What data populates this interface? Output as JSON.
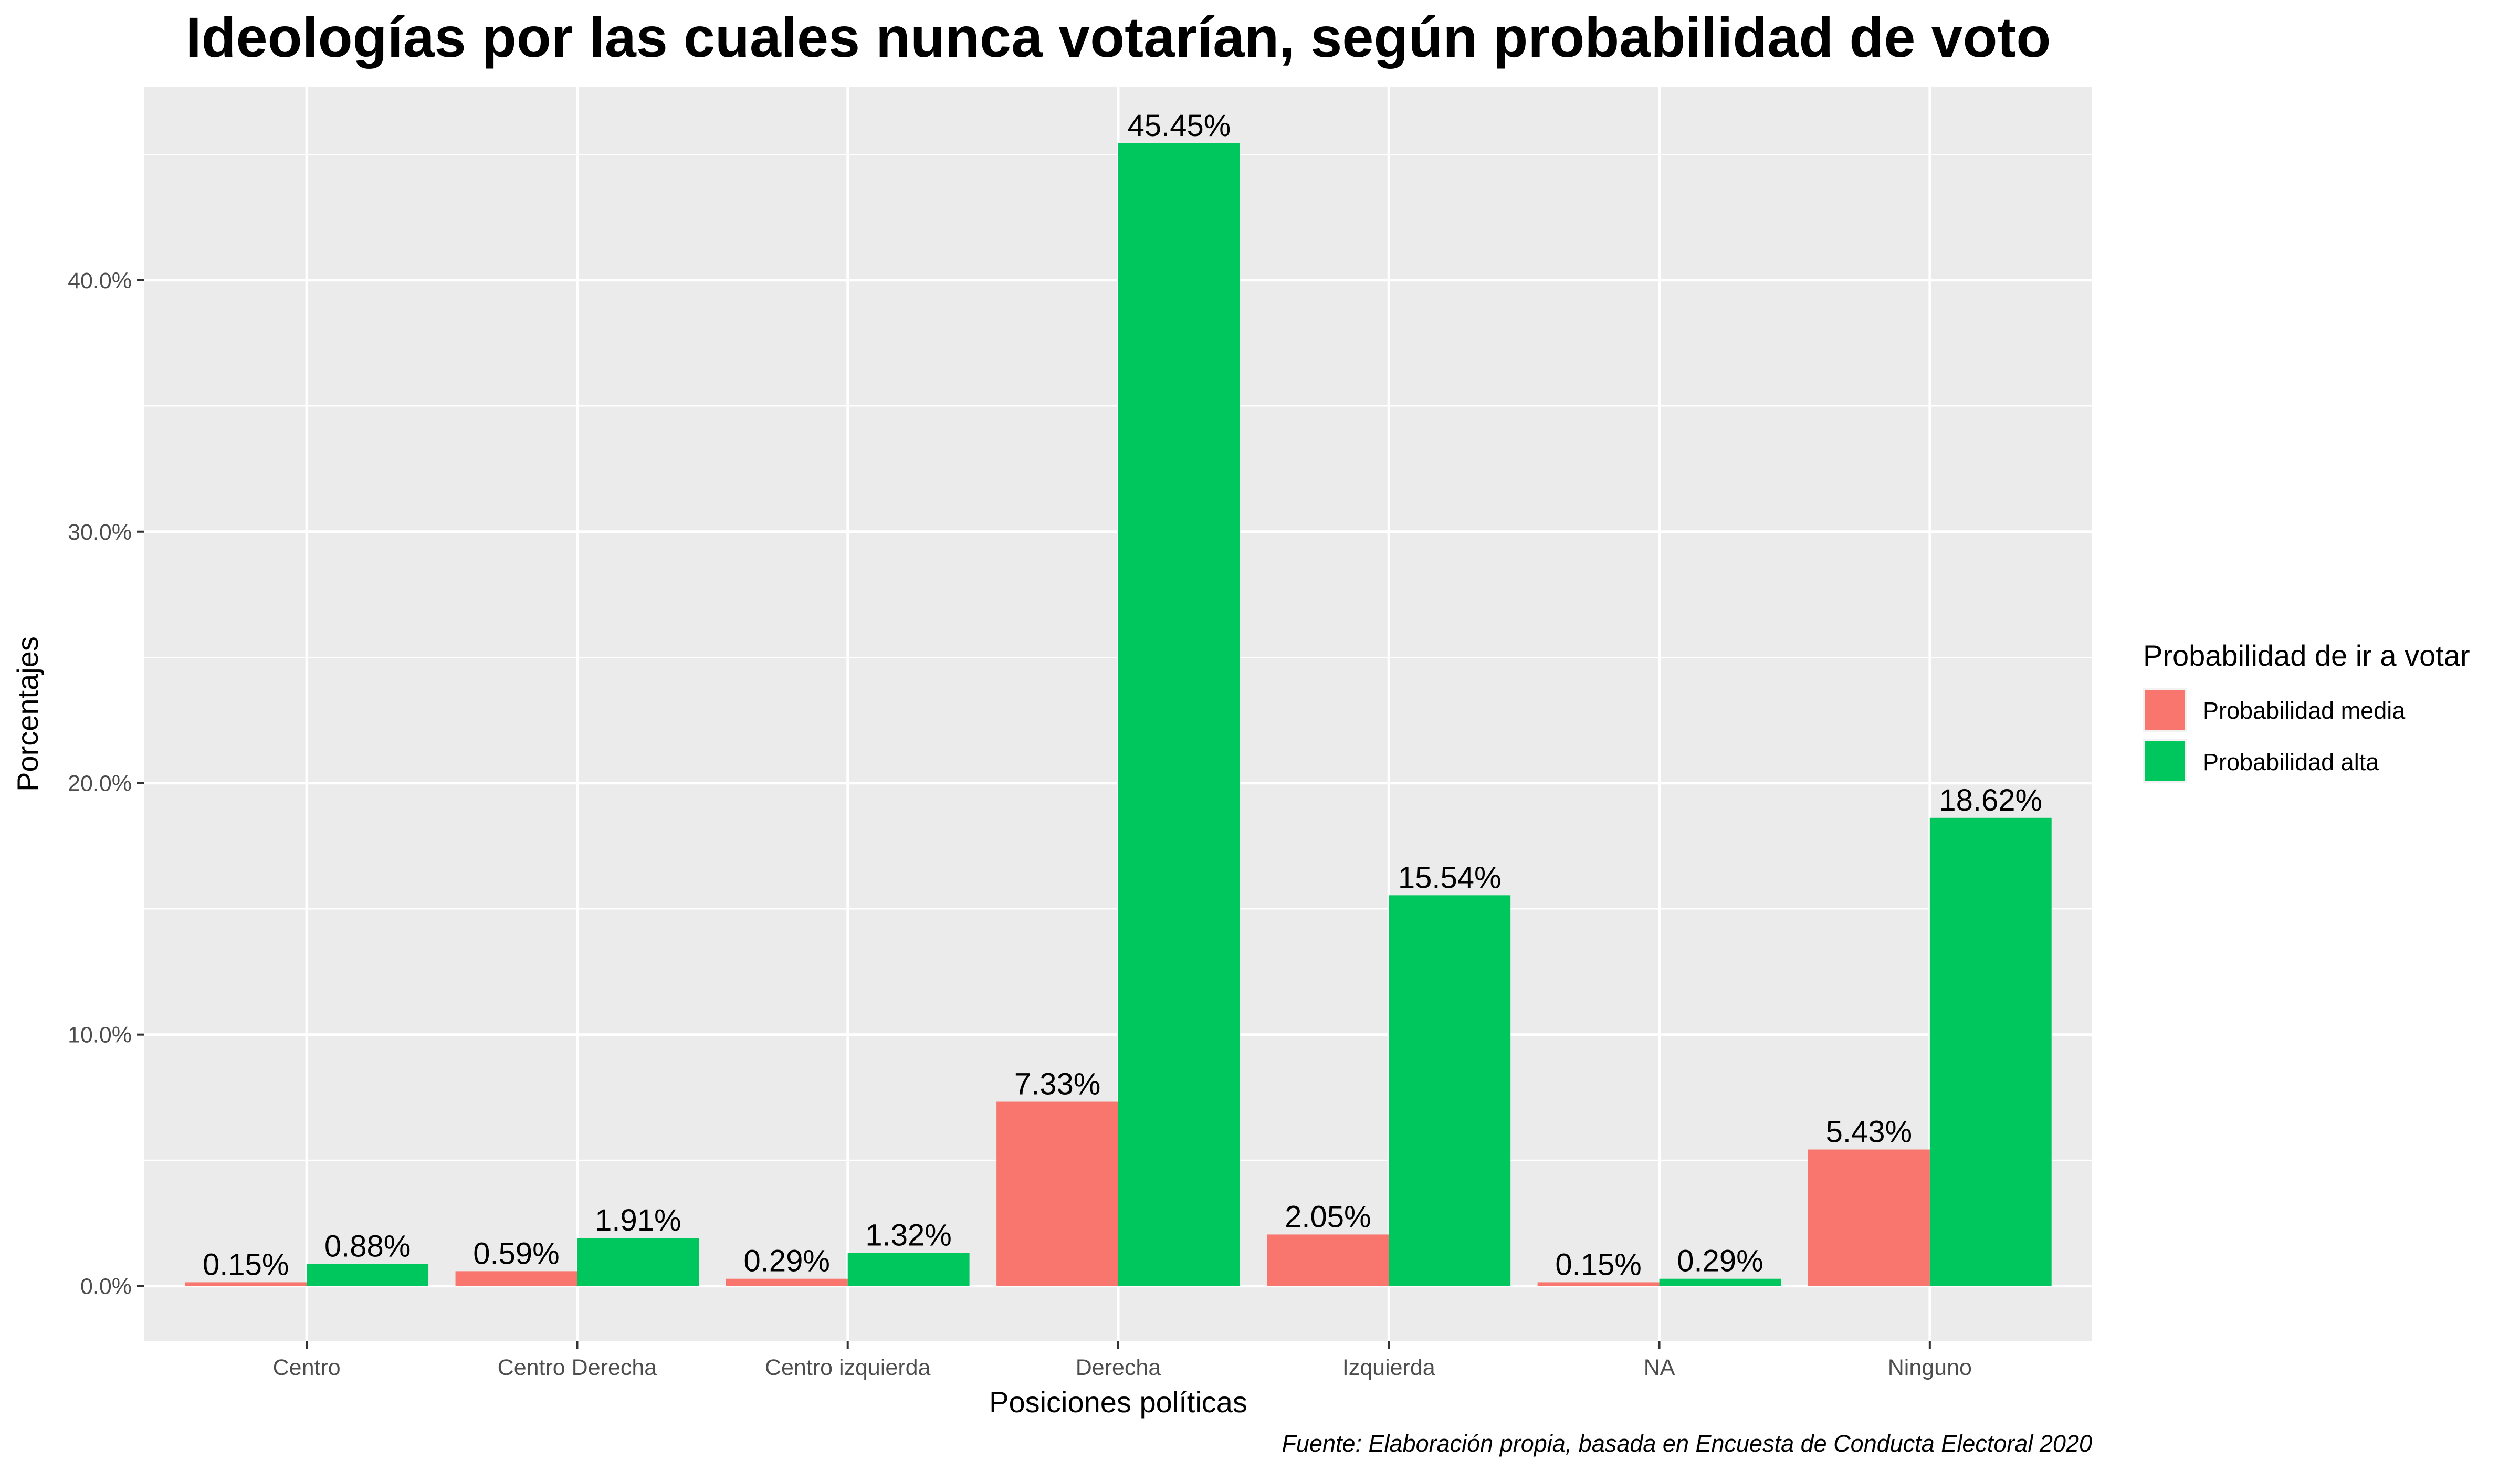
{
  "chart_data": {
    "type": "bar",
    "title": "Ideologías por las cuales nunca votarían, según probabilidad de voto",
    "xlabel": "Posiciones políticas",
    "ylabel": "Porcentajes",
    "caption": "Fuente: Elaboración propia, basada en Encuesta de Conducta Electoral 2020",
    "categories": [
      "Centro",
      "Centro Derecha",
      "Centro izquierda",
      "Derecha",
      "Izquierda",
      "NA",
      "Ninguno"
    ],
    "series": [
      {
        "name": "Probabilidad media",
        "color": "#F8766D",
        "values": [
          0.15,
          0.59,
          0.29,
          7.33,
          2.05,
          0.15,
          5.43
        ],
        "labels": [
          "0.15%",
          "0.59%",
          "0.29%",
          "7.33%",
          "2.05%",
          "0.15%",
          "5.43%"
        ]
      },
      {
        "name": "Probabilidad alta",
        "color": "#00C65E",
        "values": [
          0.88,
          1.91,
          1.32,
          45.45,
          15.54,
          0.29,
          18.62
        ],
        "labels": [
          "0.88%",
          "1.91%",
          "1.32%",
          "45.45%",
          "15.54%",
          "0.29%",
          "18.62%"
        ]
      }
    ],
    "ylim": [
      -2.2,
      47.7
    ],
    "yticks": [
      0,
      10,
      20,
      30,
      40
    ],
    "ytick_labels": [
      "0.0%",
      "10.0%",
      "20.0%",
      "30.0%",
      "40.0%"
    ],
    "legend": {
      "title": "Probabilidad de ir a votar",
      "position": "right"
    },
    "grid": true,
    "panel_background": "#EBEBEB",
    "gridline_color": "#FFFFFF"
  }
}
